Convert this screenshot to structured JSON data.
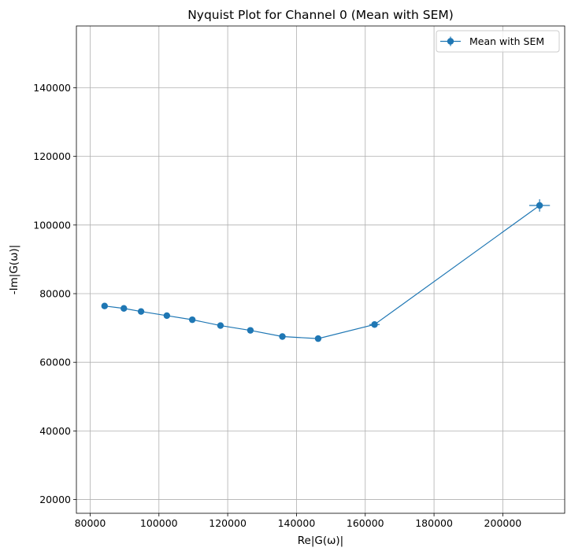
{
  "chart_data": {
    "type": "scatter",
    "title": "Nyquist Plot for Channel 0 (Mean with SEM)",
    "xlabel": "Re|G(ω)|",
    "ylabel": "-Im|G(ω)|",
    "xlim": [
      76000,
      218000
    ],
    "ylim": [
      16000,
      158000
    ],
    "xticks": [
      80000,
      100000,
      120000,
      140000,
      160000,
      180000,
      200000
    ],
    "yticks": [
      20000,
      40000,
      60000,
      80000,
      100000,
      120000,
      140000
    ],
    "grid": true,
    "legend_position": "top-right",
    "series": [
      {
        "name": "Mean with SEM",
        "color": "#1f77b4",
        "marker": "circle",
        "x": [
          84200,
          89800,
          94800,
          102300,
          109700,
          117900,
          126600,
          135900,
          146300,
          162700,
          210700
        ],
        "y": [
          76400,
          75700,
          74800,
          73600,
          72400,
          70700,
          69300,
          67500,
          66900,
          71000,
          105700
        ],
        "x_err": [
          300,
          300,
          300,
          400,
          400,
          400,
          500,
          500,
          500,
          1500,
          3000
        ],
        "y_err": [
          300,
          300,
          300,
          300,
          300,
          300,
          300,
          300,
          300,
          800,
          1800
        ]
      }
    ]
  }
}
